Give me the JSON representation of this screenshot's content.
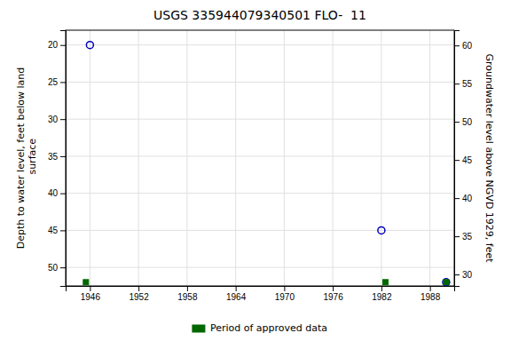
{
  "chart_data": {
    "type": "scatter",
    "title": "USGS 335944079340501 FLO-  11",
    "ylabel": "Depth to water level, feet below land\n surface",
    "y2label": "Groundwater level above NGVD 1929, feet",
    "xlim": [
      1943,
      1991
    ],
    "ylim": [
      52.5,
      18.0
    ],
    "y2lim": [
      28.5,
      62.0
    ],
    "xticks": [
      1946,
      1952,
      1958,
      1964,
      1970,
      1976,
      1982,
      1988
    ],
    "yticks": [
      20,
      25,
      30,
      35,
      40,
      45,
      50
    ],
    "y2ticks": [
      60,
      55,
      50,
      45,
      40,
      35,
      30
    ],
    "grid": true,
    "legend": "bottom",
    "series": [
      {
        "color": "#0000bb",
        "marker": "circle-open",
        "x": [
          1946.0,
          1982.0,
          1990.0
        ],
        "values": [
          20.0,
          45.0,
          52.0
        ]
      },
      {
        "name": "Period of approved data",
        "color": "#006600",
        "marker": "square",
        "x": [
          1945.5,
          1982.5,
          1990.0
        ],
        "values": [
          52.0,
          52.0,
          52.0
        ]
      }
    ]
  }
}
